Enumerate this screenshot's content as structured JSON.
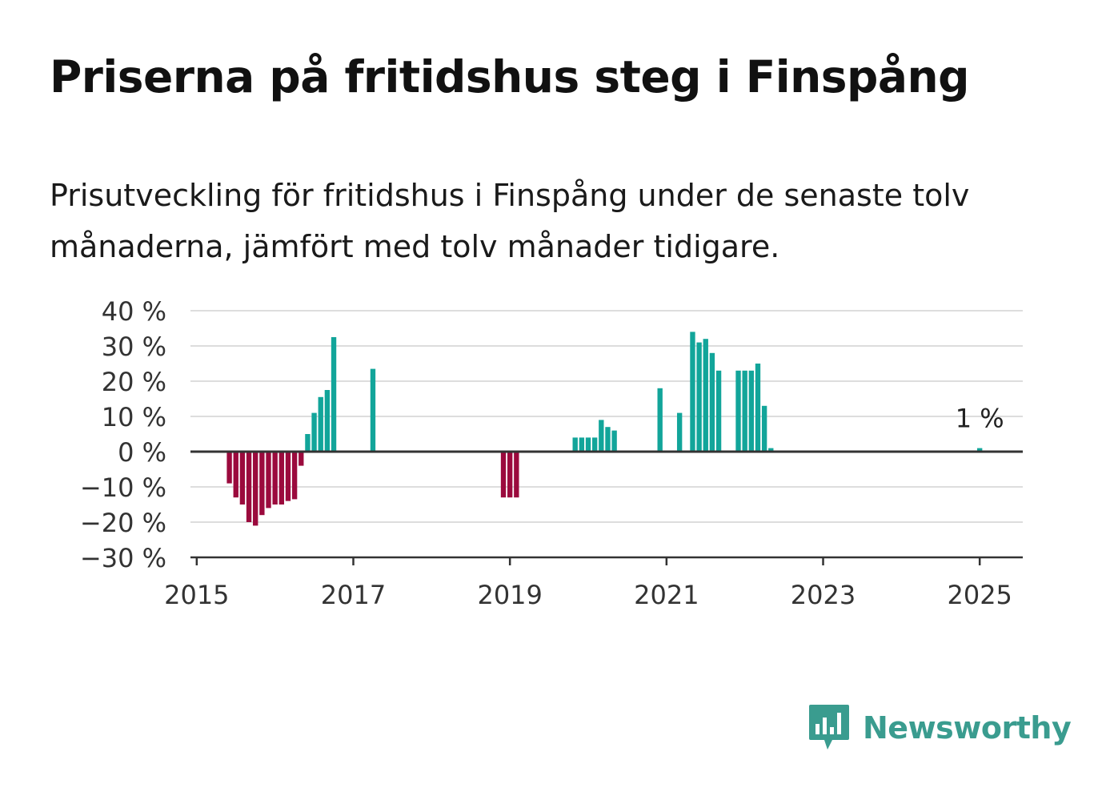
{
  "title": "Priserna på fritidshus steg i Finspång",
  "subtitle": "Prisutveckling för fritidshus i Finspång under de senaste tolv månaderna, jämfört med tolv månader tidigare.",
  "brand": {
    "name": "Newsworthy",
    "icon": "newsworthy-logo-icon",
    "color": "#3a9c8f"
  },
  "colors": {
    "positive": "#12a59a",
    "negative": "#9b0a3d",
    "grid": "#dddddd",
    "zero_line": "#333333"
  },
  "chart_data": {
    "type": "bar",
    "title": "Priserna på fritidshus steg i Finspång",
    "xlabel": "",
    "ylabel": "",
    "ylim": [
      -30,
      40
    ],
    "y_ticks": [
      -30,
      -20,
      -10,
      0,
      10,
      20,
      30,
      40
    ],
    "y_tick_labels": [
      "−30 %",
      "−20 %",
      "−10 %",
      "0 %",
      "10 %",
      "20 %",
      "30 %",
      "40 %"
    ],
    "x_ticks": [
      2015,
      2017,
      2019,
      2021,
      2023,
      2025
    ],
    "x_tick_labels": [
      "2015",
      "2017",
      "2019",
      "2021",
      "2023",
      "2025"
    ],
    "xlim": [
      2014.92,
      2025.55
    ],
    "grid": true,
    "legend": "none",
    "annotation": {
      "text": "1 %",
      "x": "2025-01",
      "y": 1
    },
    "series": [
      {
        "values": [
          {
            "x": "2015-06",
            "y": -9
          },
          {
            "x": "2015-07",
            "y": -13
          },
          {
            "x": "2015-08",
            "y": -15
          },
          {
            "x": "2015-09",
            "y": -20
          },
          {
            "x": "2015-10",
            "y": -21
          },
          {
            "x": "2015-11",
            "y": -18
          },
          {
            "x": "2015-12",
            "y": -16
          },
          {
            "x": "2016-01",
            "y": -15
          },
          {
            "x": "2016-02",
            "y": -15
          },
          {
            "x": "2016-03",
            "y": -14
          },
          {
            "x": "2016-04",
            "y": -13.5
          },
          {
            "x": "2016-05",
            "y": -4
          },
          {
            "x": "2016-06",
            "y": 5
          },
          {
            "x": "2016-07",
            "y": 11
          },
          {
            "x": "2016-08",
            "y": 15.5
          },
          {
            "x": "2016-09",
            "y": 17.5
          },
          {
            "x": "2016-10",
            "y": 32.5
          },
          {
            "x": "2017-04",
            "y": 23.5
          },
          {
            "x": "2018-12",
            "y": -13
          },
          {
            "x": "2019-01",
            "y": -13
          },
          {
            "x": "2019-02",
            "y": -13
          },
          {
            "x": "2019-11",
            "y": 4
          },
          {
            "x": "2019-12",
            "y": 4
          },
          {
            "x": "2020-01",
            "y": 4
          },
          {
            "x": "2020-02",
            "y": 4
          },
          {
            "x": "2020-03",
            "y": 9
          },
          {
            "x": "2020-04",
            "y": 7
          },
          {
            "x": "2020-05",
            "y": 6
          },
          {
            "x": "2020-12",
            "y": 18
          },
          {
            "x": "2021-03",
            "y": 11
          },
          {
            "x": "2021-05",
            "y": 34
          },
          {
            "x": "2021-06",
            "y": 31
          },
          {
            "x": "2021-07",
            "y": 32
          },
          {
            "x": "2021-08",
            "y": 28
          },
          {
            "x": "2021-09",
            "y": 23
          },
          {
            "x": "2021-12",
            "y": 23
          },
          {
            "x": "2022-01",
            "y": 23
          },
          {
            "x": "2022-02",
            "y": 23
          },
          {
            "x": "2022-03",
            "y": 25
          },
          {
            "x": "2022-04",
            "y": 13
          },
          {
            "x": "2022-05",
            "y": 1
          },
          {
            "x": "2025-01",
            "y": 1
          }
        ]
      }
    ]
  }
}
